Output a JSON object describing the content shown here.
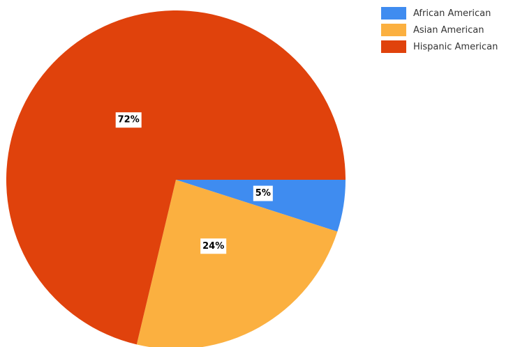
{
  "chart_data": {
    "type": "pie",
    "title": "",
    "categories": [
      "African American",
      "Asian American",
      "Hispanic American"
    ],
    "values": [
      5,
      24,
      72
    ],
    "value_labels": [
      "5%",
      "24%",
      "72%"
    ],
    "colors": [
      "#3f8cf0",
      "#fbb040",
      "#e0420c"
    ],
    "start_angle_deg": 0,
    "direction": "clockwise",
    "legend_position": "top-right"
  },
  "legend": {
    "items": [
      {
        "label": "African American",
        "color": "#3f8cf0"
      },
      {
        "label": "Asian American",
        "color": "#fbb040"
      },
      {
        "label": "Hispanic American",
        "color": "#e0420c"
      }
    ]
  }
}
